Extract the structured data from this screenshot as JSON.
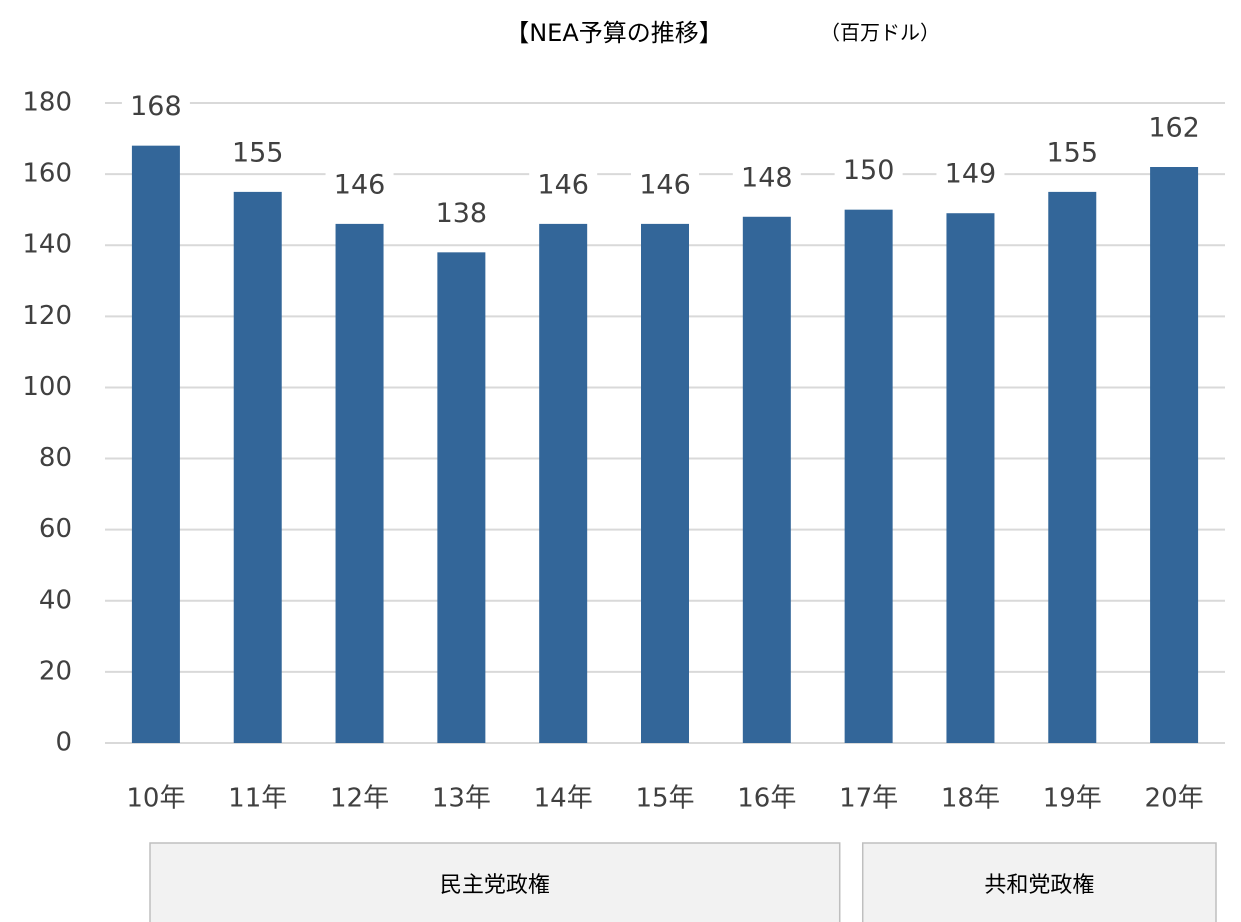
{
  "chart_data": {
    "type": "bar",
    "title": "【NEA予算の推移】",
    "unit": "（百万ドル）",
    "categories": [
      "10年",
      "11年",
      "12年",
      "13年",
      "14年",
      "15年",
      "16年",
      "17年",
      "18年",
      "19年",
      "20年"
    ],
    "values": [
      168,
      155,
      146,
      138,
      146,
      146,
      148,
      150,
      149,
      155,
      162
    ],
    "color": "#336699",
    "ylim": [
      0,
      180
    ],
    "yticks": [
      0,
      20,
      40,
      60,
      80,
      100,
      120,
      140,
      160,
      180
    ],
    "grid": true,
    "groups": [
      {
        "label": "民主党政権",
        "count": 7
      },
      {
        "label": "共和党政権",
        "count": 4
      }
    ]
  }
}
